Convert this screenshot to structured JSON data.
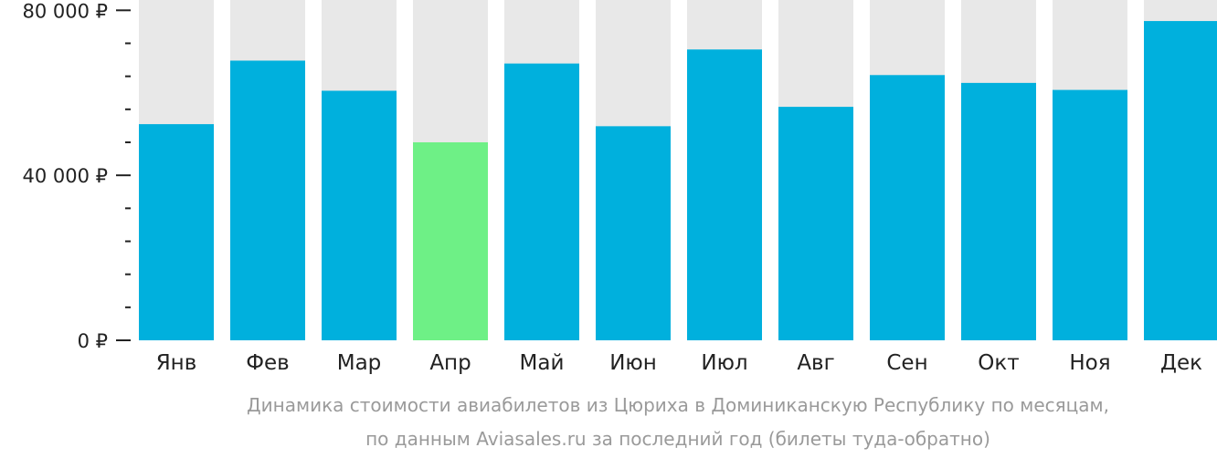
{
  "chart_data": {
    "type": "bar",
    "categories": [
      "Янв",
      "Фев",
      "Мар",
      "Апр",
      "Май",
      "Июн",
      "Июл",
      "Авг",
      "Сен",
      "Окт",
      "Ноя",
      "Дек"
    ],
    "values": [
      52400,
      67800,
      60500,
      48000,
      67100,
      51900,
      70500,
      56600,
      64300,
      62400,
      60700,
      77400
    ],
    "ylim": [
      0,
      82500
    ],
    "yticks": [
      {
        "value": 80000,
        "label": "80 000 ₽"
      },
      {
        "value": 40000,
        "label": "40 000 ₽"
      },
      {
        "value": 0,
        "label": "0 ₽"
      }
    ],
    "minor_tick_step": 8000,
    "highlight_index": 3,
    "colors": {
      "bar": "#00b0dd",
      "highlight": "#6ef086",
      "background_bar": "#e8e8e8",
      "axis": "#222222"
    }
  },
  "caption": {
    "line1": "Динамика стоимости авиабилетов из Цюриха в Доминиканскую Республику по месяцам,",
    "line2": "по данным Aviasales.ru за последний год (билеты туда-обратно)"
  }
}
